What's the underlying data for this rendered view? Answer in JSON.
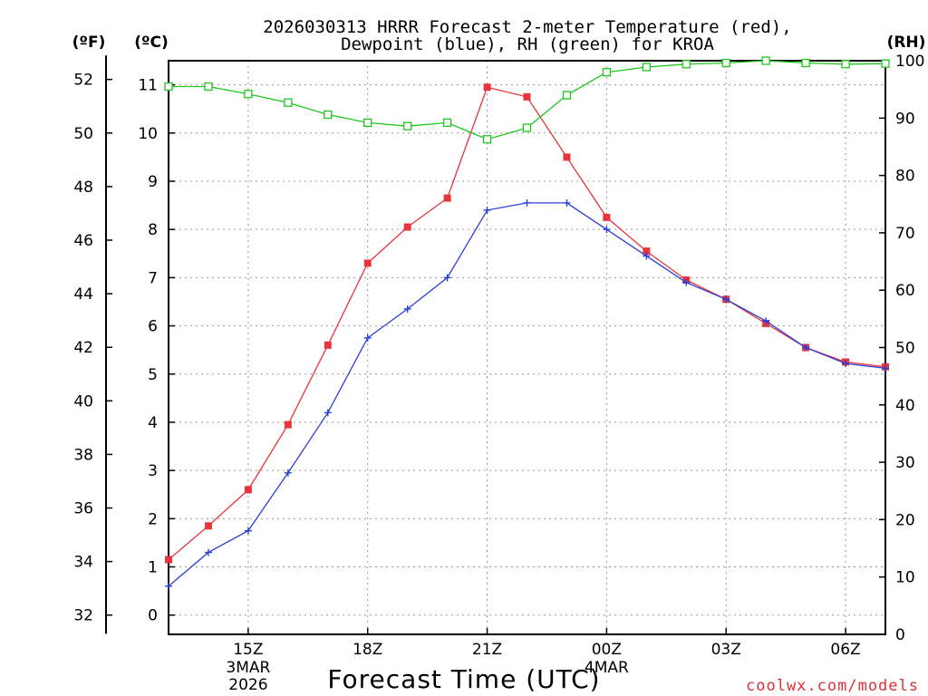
{
  "chart_data": {
    "type": "line",
    "title_line1": "2026030313 HRRR Forecast 2-meter Temperature (red),",
    "title_line2": "Dewpoint (blue), RH (green) for KROA",
    "xlabel": "Forecast Time (UTC)",
    "credit": "coolwx.com/models",
    "units": {
      "fahrenheit": "(ºF)",
      "celsius": "(ºC)",
      "rh": "(RH)"
    },
    "x_hours": [
      13,
      14,
      15,
      16,
      17,
      18,
      19,
      20,
      21,
      22,
      23,
      24,
      25,
      26,
      27,
      28,
      29,
      30,
      31
    ],
    "xlim": [
      13,
      31
    ],
    "x_ticks": [
      {
        "hour": 15,
        "label": "15Z",
        "sub1": "3MAR",
        "sub2": "2026"
      },
      {
        "hour": 18,
        "label": "18Z",
        "sub1": "",
        "sub2": ""
      },
      {
        "hour": 21,
        "label": "21Z",
        "sub1": "",
        "sub2": ""
      },
      {
        "hour": 24,
        "label": "00Z",
        "sub1": "4MAR",
        "sub2": ""
      },
      {
        "hour": 27,
        "label": "03Z",
        "sub1": "",
        "sub2": ""
      },
      {
        "hour": 30,
        "label": "06Z",
        "sub1": "",
        "sub2": ""
      }
    ],
    "celsius_axis": {
      "ylim": [
        -0.4,
        11.5
      ],
      "ticks": [
        0,
        1,
        2,
        3,
        4,
        5,
        6,
        7,
        8,
        9,
        10,
        11
      ]
    },
    "fahrenheit_ticks": [
      32,
      34,
      36,
      38,
      40,
      42,
      44,
      46,
      48,
      50,
      52
    ],
    "rh_axis": {
      "ylim": [
        0,
        100
      ],
      "ticks": [
        0,
        10,
        20,
        30,
        40,
        50,
        60,
        70,
        80,
        90,
        100
      ]
    },
    "series": [
      {
        "name": "Temperature",
        "axis": "celsius",
        "color": "#e8343c",
        "marker": "filled-square",
        "values": [
          1.15,
          1.85,
          2.6,
          3.95,
          5.6,
          7.3,
          8.05,
          8.65,
          10.95,
          10.75,
          9.5,
          8.25,
          7.55,
          6.95,
          6.55,
          6.05,
          5.55,
          5.25,
          5.15
        ]
      },
      {
        "name": "Dewpoint",
        "axis": "celsius",
        "color": "#2b3fd9",
        "marker": "plus",
        "values": [
          0.6,
          1.3,
          1.75,
          2.95,
          4.2,
          5.75,
          6.35,
          7.0,
          8.4,
          8.55,
          8.55,
          8.0,
          7.45,
          6.9,
          6.55,
          6.1,
          5.55,
          5.22,
          5.12
        ]
      },
      {
        "name": "RH",
        "axis": "rh",
        "color": "#1ec81e",
        "marker": "open-square",
        "values": [
          95.5,
          95.5,
          94.2,
          92.7,
          90.6,
          89.2,
          88.6,
          89.2,
          86.3,
          88.3,
          94.0,
          98.0,
          98.9,
          99.4,
          99.6,
          100,
          99.6,
          99.4,
          99.5
        ]
      }
    ]
  }
}
